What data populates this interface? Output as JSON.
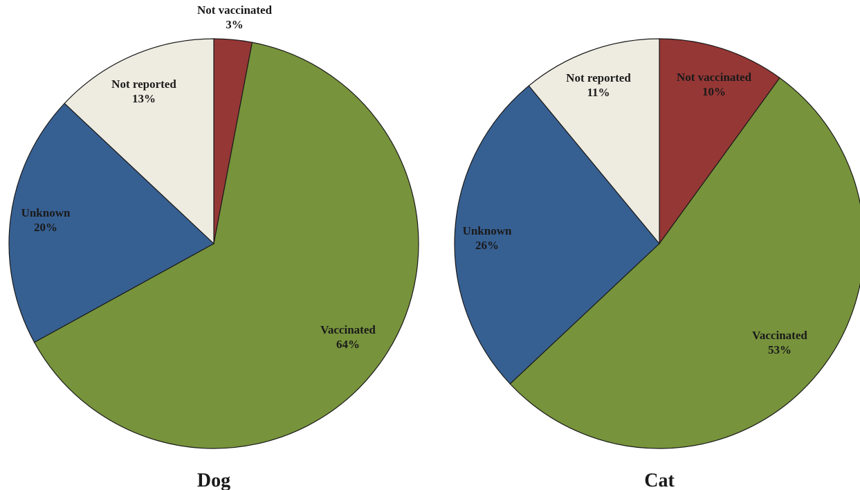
{
  "chart_data": [
    {
      "type": "pie",
      "title": "Dog",
      "slices": [
        {
          "label": "Not vaccinated",
          "value": 3,
          "value_label": "3%",
          "color": "#953735"
        },
        {
          "label": "Vaccinated",
          "value": 64,
          "value_label": "64%",
          "color": "#77933C"
        },
        {
          "label": "Unknown",
          "value": 20,
          "value_label": "20%",
          "color": "#376092"
        },
        {
          "label": "Not reported",
          "value": 13,
          "value_label": "13%",
          "color": "#EEECE1"
        }
      ]
    },
    {
      "type": "pie",
      "title": "Cat",
      "slices": [
        {
          "label": "Not vaccinated",
          "value": 10,
          "value_label": "10%",
          "color": "#953735"
        },
        {
          "label": "Vaccinated",
          "value": 53,
          "value_label": "53%",
          "color": "#77933C"
        },
        {
          "label": "Unknown",
          "value": 26,
          "value_label": "26%",
          "color": "#376092"
        },
        {
          "label": "Not reported",
          "value": 11,
          "value_label": "11%",
          "color": "#EEECE1"
        }
      ]
    }
  ]
}
